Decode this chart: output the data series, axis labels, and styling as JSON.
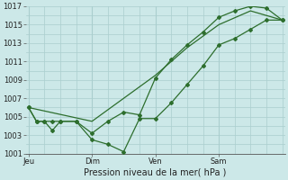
{
  "xlabel": "Pression niveau de la mer( hPa )",
  "bg_color": "#cce8e8",
  "plot_bg_color": "#cce8e8",
  "grid_color": "#aacece",
  "line_color": "#2d6e2d",
  "ylim": [
    1001,
    1017
  ],
  "yticks": [
    1001,
    1003,
    1005,
    1007,
    1009,
    1011,
    1013,
    1015,
    1017
  ],
  "day_labels": [
    "Jeu",
    "Dim",
    "Ven",
    "Sam"
  ],
  "day_positions": [
    0,
    24,
    48,
    72
  ],
  "xlim": [
    -1,
    97
  ],
  "vline_x": [
    0,
    24,
    48,
    72
  ],
  "line1_x": [
    0,
    3,
    6,
    9,
    12,
    18,
    24,
    30,
    36,
    42,
    48,
    54,
    60,
    66,
    72,
    78,
    84,
    90,
    96
  ],
  "line1_y": [
    1006,
    1004.5,
    1004.5,
    1003.5,
    1004.5,
    1004.5,
    1003.2,
    1004.5,
    1005.5,
    1005.2,
    1009.2,
    1011.2,
    1012.8,
    1014.2,
    1015.8,
    1016.5,
    1017.0,
    1016.8,
    1015.5
  ],
  "line2_x": [
    0,
    3,
    6,
    9,
    12,
    18,
    24,
    30,
    36,
    42,
    48,
    54,
    60,
    66,
    72,
    78,
    84,
    90,
    96
  ],
  "line2_y": [
    1006,
    1004.5,
    1004.5,
    1004.5,
    1004.5,
    1004.5,
    1002.5,
    1002.0,
    1001.2,
    1004.8,
    1004.8,
    1006.5,
    1008.5,
    1010.5,
    1012.8,
    1013.5,
    1014.5,
    1015.5,
    1015.5
  ],
  "line3_x": [
    0,
    24,
    48,
    60,
    72,
    84,
    96
  ],
  "line3_y": [
    1006,
    1004.5,
    1009.5,
    1012.5,
    1015.0,
    1016.5,
    1015.5
  ]
}
